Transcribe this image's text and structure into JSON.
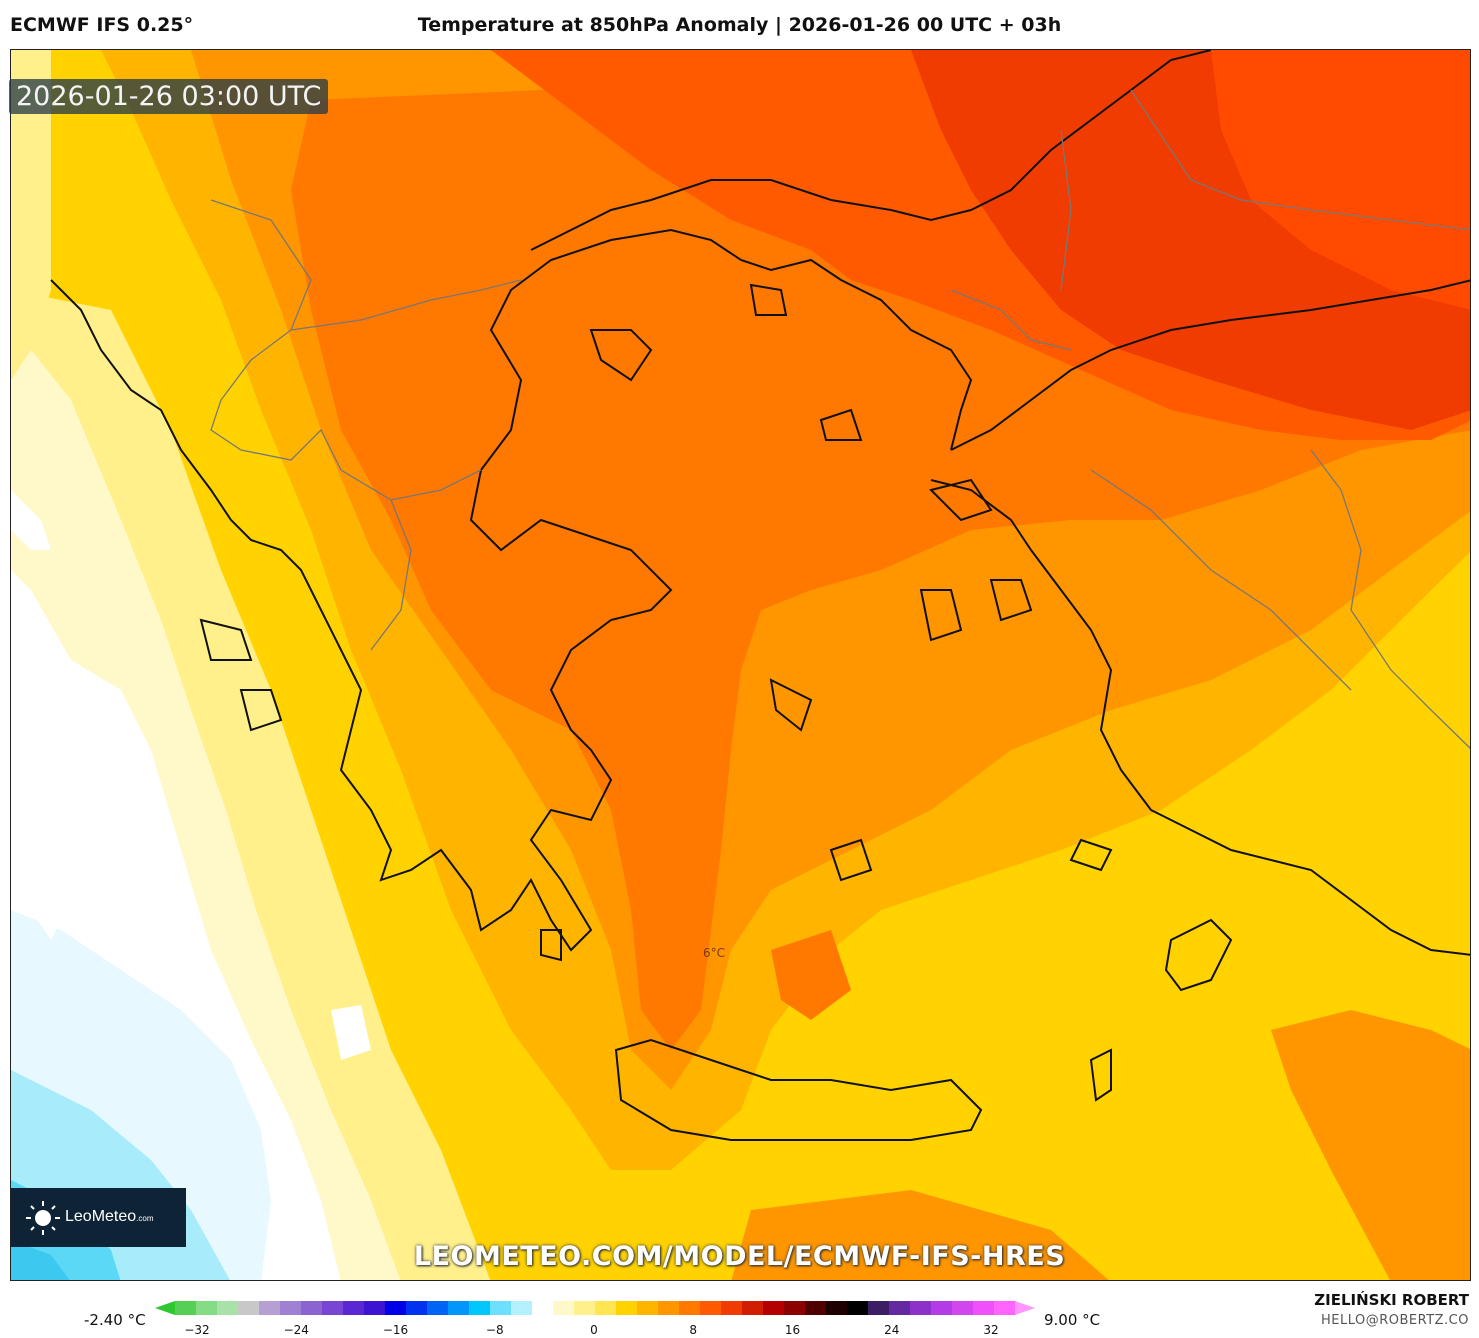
{
  "header": {
    "model": "ECMWF IFS 0.25°",
    "title": "Temperature at 850hPa Anomaly | 2026-01-26 00 UTC + 03h"
  },
  "map": {
    "valid_time": "2026-01-26 03:00 UTC",
    "contour_label": "6°C",
    "url": "LEOMETEO.COM/MODEL/ECMWF-IFS-HRES",
    "logo": "LeoMeteo",
    "logo_suffix": ".com"
  },
  "colorbar": {
    "min_label": "-2.40 °C",
    "max_label": "9.00 °C",
    "ticks": [
      "−32",
      "−24",
      "−16",
      "−8",
      "0",
      "8",
      "16",
      "24",
      "32"
    ],
    "colors": [
      "#2ec82e",
      "#55d055",
      "#85dc85",
      "#a8e2a8",
      "#c8c8c8",
      "#b4a0d2",
      "#a080d2",
      "#8c64d2",
      "#7846d2",
      "#5a28d2",
      "#3c14d2",
      "#0000e6",
      "#0032f0",
      "#0064f5",
      "#0096fa",
      "#00c8ff",
      "#6ee0ff",
      "#b4f0ff",
      "#ffffff",
      "#fff8c8",
      "#fff08c",
      "#ffe650",
      "#ffd200",
      "#ffb400",
      "#ff9600",
      "#ff7800",
      "#ff5a00",
      "#f03c00",
      "#d21e00",
      "#b40000",
      "#8c0000",
      "#500000",
      "#1e0000",
      "#000000",
      "#3c1e64",
      "#6428a0",
      "#8c32c8",
      "#b43ce6",
      "#d246f0",
      "#f050fa",
      "#ff64ff",
      "#ff96ff"
    ]
  },
  "footer": {
    "author": "ZIELIŃSKI ROBERT",
    "email": "HELLO@ROBERTZ.CO"
  }
}
